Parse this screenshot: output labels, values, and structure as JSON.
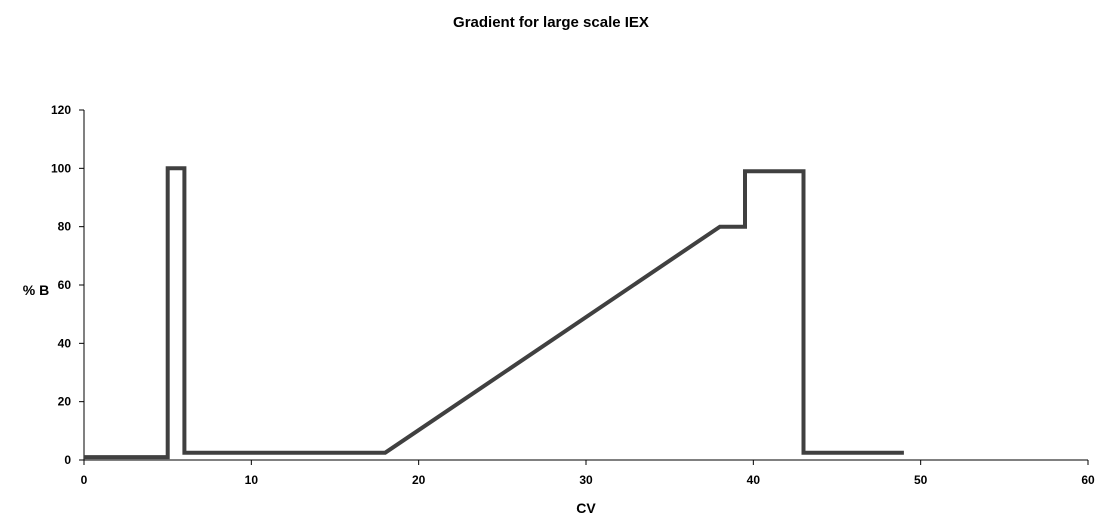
{
  "chart_data": {
    "type": "line",
    "title": "Gradient for large scale IEX",
    "xlabel": "CV",
    "ylabel": "% B",
    "xlim": [
      0,
      60
    ],
    "ylim": [
      0,
      120
    ],
    "xticks": [
      0,
      10,
      20,
      30,
      40,
      50,
      60
    ],
    "yticks": [
      0,
      20,
      40,
      60,
      80,
      100,
      120
    ],
    "grid": false,
    "legend": "none",
    "line_color": "#404040",
    "series": [
      {
        "x": [
          0,
          5,
          5,
          6,
          6,
          18,
          38,
          39.5,
          39.5,
          43,
          43,
          49
        ],
        "y": [
          1,
          1,
          100,
          100,
          2.5,
          2.5,
          80,
          80,
          99,
          99,
          2.5,
          2.5
        ]
      }
    ]
  }
}
